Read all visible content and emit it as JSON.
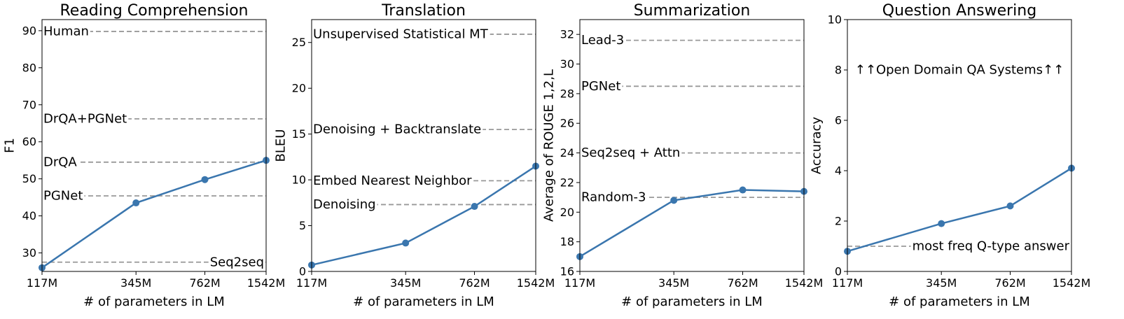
{
  "chart_data": [
    {
      "type": "line",
      "title": "Reading Comprehension",
      "xlabel": "# of parameters in LM",
      "ylabel": "F1",
      "x_scale": "log",
      "categories": [
        "117M",
        "345M",
        "762M",
        "1542M"
      ],
      "x": [
        117,
        345,
        762,
        1542
      ],
      "xlim": [
        117,
        1542
      ],
      "ylim": [
        25,
        93
      ],
      "yticks": [
        30,
        40,
        50,
        60,
        70,
        80,
        90
      ],
      "series": [
        {
          "values": [
            26.0,
            43.5,
            49.8,
            55.0
          ]
        }
      ],
      "reference_lines": [
        {
          "label": "Human",
          "value": 89.8,
          "label_position": "left"
        },
        {
          "label": "DrQA+PGNet",
          "value": 66.2,
          "label_position": "left"
        },
        {
          "label": "DrQA",
          "value": 54.5,
          "label_position": "left"
        },
        {
          "label": "PGNet",
          "value": 45.4,
          "label_position": "left"
        },
        {
          "label": "Seq2seq",
          "value": 27.5,
          "label_position": "right"
        }
      ]
    },
    {
      "type": "line",
      "title": "Translation",
      "xlabel": "# of parameters in LM",
      "ylabel": "BLEU",
      "x_scale": "log",
      "categories": [
        "117M",
        "345M",
        "762M",
        "1542M"
      ],
      "x": [
        117,
        345,
        762,
        1542
      ],
      "xlim": [
        117,
        1542
      ],
      "ylim": [
        0,
        27.5
      ],
      "yticks": [
        0,
        5,
        10,
        15,
        20,
        25
      ],
      "series": [
        {
          "values": [
            0.7,
            3.1,
            7.1,
            11.5
          ]
        }
      ],
      "reference_lines": [
        {
          "label": "Unsupervised Statistical MT",
          "value": 25.9,
          "label_position": "left"
        },
        {
          "label": "Denoising + Backtranslate",
          "value": 15.5,
          "label_position": "left"
        },
        {
          "label": "Embed Nearest Neighbor",
          "value": 9.9,
          "label_position": "left"
        },
        {
          "label": "Denoising",
          "value": 7.3,
          "label_position": "left"
        }
      ]
    },
    {
      "type": "line",
      "title": "Summarization",
      "xlabel": "# of parameters in LM",
      "ylabel": "Average of ROUGE 1,2,L",
      "x_scale": "log",
      "categories": [
        "117M",
        "345M",
        "762M",
        "1542M"
      ],
      "x": [
        117,
        345,
        762,
        1542
      ],
      "xlim": [
        117,
        1542
      ],
      "ylim": [
        16,
        33
      ],
      "yticks": [
        16,
        18,
        20,
        22,
        24,
        26,
        28,
        30,
        32
      ],
      "series": [
        {
          "values": [
            17.0,
            20.8,
            21.5,
            21.4
          ]
        }
      ],
      "reference_lines": [
        {
          "label": "Lead-3",
          "value": 31.6,
          "label_position": "left"
        },
        {
          "label": "PGNet",
          "value": 28.5,
          "label_position": "left"
        },
        {
          "label": "Seq2seq + Attn",
          "value": 24.0,
          "label_position": "left"
        },
        {
          "label": "Random-3",
          "value": 21.0,
          "label_position": "left"
        }
      ]
    },
    {
      "type": "line",
      "title": "Question Answering",
      "xlabel": "# of parameters in LM",
      "ylabel": "Accuracy",
      "x_scale": "log",
      "categories": [
        "117M",
        "345M",
        "762M",
        "1542M"
      ],
      "x": [
        117,
        345,
        762,
        1542
      ],
      "xlim": [
        117,
        1542
      ],
      "ylim": [
        0,
        10
      ],
      "yticks": [
        0,
        2,
        4,
        6,
        8,
        10
      ],
      "series": [
        {
          "values": [
            0.8,
            1.9,
            2.6,
            4.1
          ]
        }
      ],
      "reference_lines": [
        {
          "label": "most freq Q-type answer",
          "value": 1.0,
          "label_position": "right"
        }
      ],
      "annotations": [
        {
          "text": "↑↑Open Domain QA Systems↑↑",
          "y": 8.0
        }
      ]
    }
  ],
  "colors": {
    "series": "#3a76ae",
    "reference": "#999999"
  }
}
